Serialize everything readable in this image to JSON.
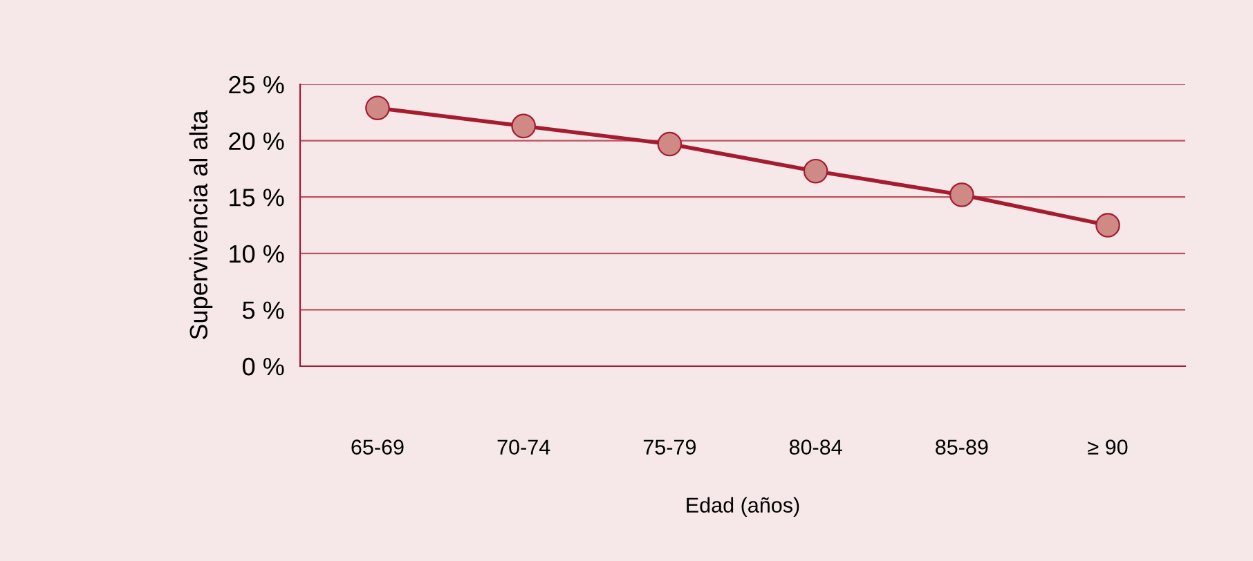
{
  "chart_data": {
    "type": "line",
    "xlabel": "Edad (años)",
    "ylabel": "Supervivencia al alta",
    "categories": [
      "65-69",
      "70-74",
      "75-79",
      "80-84",
      "85-89",
      "≥ 90"
    ],
    "series": [
      {
        "color": "#a51c30",
        "values": [
          22.9,
          21.3,
          19.7,
          17.3,
          15.2,
          12.5
        ]
      }
    ],
    "ylim": [
      0,
      25
    ],
    "yticks": [
      {
        "value": 0,
        "label": "0 %"
      },
      {
        "value": 5,
        "label": "5 %"
      },
      {
        "value": 10,
        "label": "10 %"
      },
      {
        "value": 15,
        "label": "15 %"
      },
      {
        "value": 20,
        "label": "20 %"
      },
      {
        "value": 25,
        "label": "25 %"
      }
    ],
    "grid": "y",
    "marker": "circle",
    "line_style": "solid",
    "legend": false
  }
}
